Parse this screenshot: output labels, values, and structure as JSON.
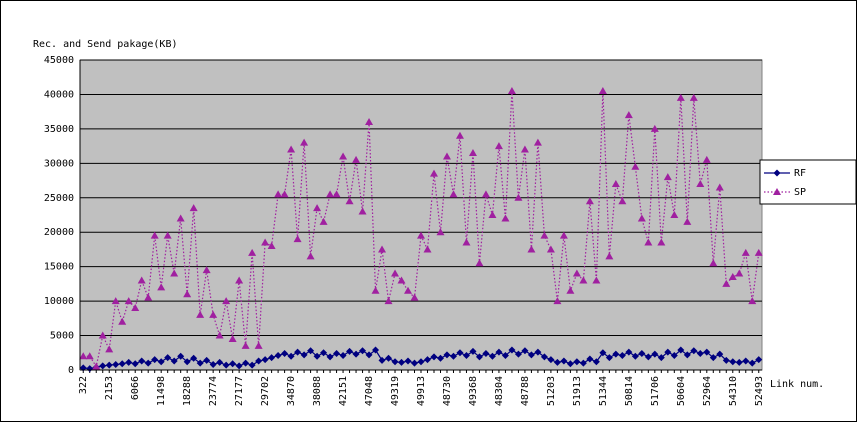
{
  "chart_data": {
    "type": "line",
    "y_axis_label": "Rec. and Send pakage(KB)",
    "x_axis_label": "Link num.",
    "categories": [
      "322",
      null,
      null,
      null,
      "2153",
      null,
      null,
      null,
      "6066",
      null,
      null,
      null,
      "11498",
      null,
      null,
      null,
      "18288",
      null,
      null,
      null,
      "23774",
      null,
      null,
      null,
      "27177",
      null,
      null,
      null,
      "29702",
      null,
      null,
      null,
      "34870",
      null,
      null,
      null,
      "38088",
      null,
      null,
      null,
      "42151",
      null,
      null,
      null,
      "47048",
      null,
      null,
      null,
      "49319",
      null,
      null,
      null,
      "49913",
      null,
      null,
      null,
      "48730",
      null,
      null,
      null,
      "49368",
      null,
      null,
      null,
      "48304",
      null,
      null,
      null,
      "48788",
      null,
      null,
      null,
      "51203",
      null,
      null,
      null,
      "51913",
      null,
      null,
      null,
      "51344",
      null,
      null,
      null,
      "50814",
      null,
      null,
      null,
      "51706",
      null,
      null,
      null,
      "50604",
      null,
      null,
      null,
      "52964",
      null,
      null,
      null,
      "54310",
      null,
      null,
      null,
      "52493"
    ],
    "series": [
      {
        "name": "RF",
        "color": "#000080",
        "marker": "diamond",
        "line_style": "solid",
        "values": [
          300,
          200,
          400,
          600,
          700,
          800,
          900,
          1100,
          900,
          1300,
          1000,
          1500,
          1200,
          1800,
          1300,
          2000,
          1200,
          1700,
          1000,
          1400,
          800,
          1100,
          700,
          900,
          600,
          1000,
          700,
          1300,
          1500,
          1800,
          2100,
          2400,
          2000,
          2600,
          2200,
          2800,
          2000,
          2500,
          1900,
          2400,
          2100,
          2700,
          2300,
          2800,
          2200,
          2900,
          1400,
          1700,
          1200,
          1100,
          1300,
          1000,
          1200,
          1500,
          1900,
          1700,
          2200,
          2000,
          2500,
          2100,
          2700,
          1900,
          2400,
          2000,
          2600,
          2100,
          2900,
          2300,
          2800,
          2200,
          2600,
          1900,
          1500,
          1100,
          1300,
          900,
          1200,
          1000,
          1600,
          1200,
          2500,
          1800,
          2300,
          2100,
          2600,
          2000,
          2400,
          1900,
          2300,
          1800,
          2600,
          2100,
          2900,
          2200,
          2800,
          2400,
          2600,
          1800,
          2300,
          1400,
          1200,
          1100,
          1300,
          1000,
          1500
        ]
      },
      {
        "name": "SP",
        "color": "#a020a0",
        "marker": "triangle",
        "line_style": "dotted",
        "values": [
          2000,
          2000,
          500,
          5000,
          3000,
          10000,
          7000,
          10000,
          9000,
          13000,
          10500,
          19500,
          12000,
          19500,
          14000,
          22000,
          11000,
          23500,
          8000,
          14500,
          8000,
          5000,
          10000,
          4500,
          13000,
          3500,
          17000,
          3500,
          18500,
          18000,
          25500,
          25500,
          32000,
          19000,
          33000,
          16500,
          23500,
          21500,
          25500,
          25500,
          31000,
          24500,
          30500,
          23000,
          36000,
          11500,
          17500,
          10000,
          14000,
          13000,
          11500,
          10500,
          19500,
          17500,
          28500,
          20000,
          31000,
          25500,
          34000,
          18500,
          31500,
          15500,
          25500,
          22500,
          32500,
          22000,
          40500,
          25000,
          32000,
          17500,
          33000,
          19500,
          17500,
          10000,
          19500,
          11500,
          14000,
          13000,
          24500,
          13000,
          40500,
          16500,
          27000,
          24500,
          37000,
          29500,
          22000,
          18500,
          35000,
          18500,
          28000,
          22500,
          39500,
          21500,
          39500,
          27000,
          30500,
          15500,
          26500,
          12500,
          13500,
          14000,
          17000,
          10000,
          17000
        ]
      }
    ],
    "ylim": [
      0,
      45000
    ],
    "yticks": [
      0,
      5000,
      10000,
      15000,
      20000,
      25000,
      30000,
      35000,
      40000,
      45000
    ],
    "grid": true,
    "legend": "right",
    "plot_background": "#c0c0c0"
  }
}
